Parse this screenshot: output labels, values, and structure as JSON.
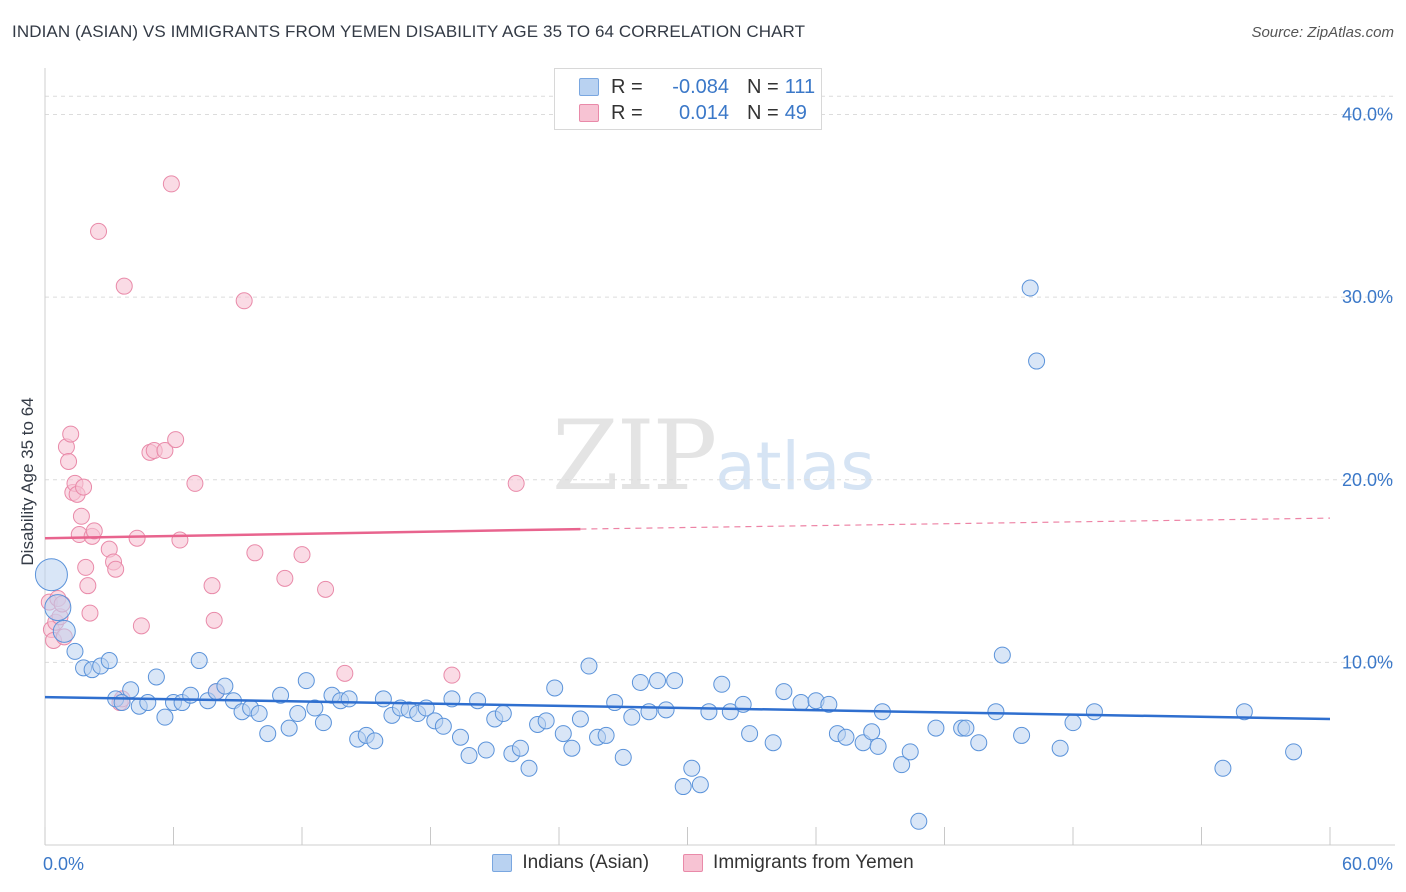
{
  "title": "INDIAN (ASIAN) VS IMMIGRANTS FROM YEMEN DISABILITY AGE 35 TO 64 CORRELATION CHART",
  "source": "Source: ZipAtlas.com",
  "watermark": {
    "zip": "ZIP",
    "atlas": "atlas"
  },
  "legend": {
    "rows": [
      {
        "r_label": "R =",
        "r_value": "-0.084",
        "n_label": "N =",
        "n_value": "111"
      },
      {
        "r_label": "R =",
        "r_value": "0.014",
        "n_label": "N =",
        "n_value": "49"
      }
    ]
  },
  "bottom_legend": {
    "series1": "Indians (Asian)",
    "series2": "Immigrants from Yemen"
  },
  "colors": {
    "blue": "#3b78c8",
    "blue_fill": "#b9d2f1",
    "blue_line": "#2f6fcf",
    "pink_fill": "#f7c3d3",
    "pink_line": "#e8648e"
  },
  "chart_data": {
    "type": "scatter",
    "title": "INDIAN (ASIAN) VS IMMIGRANTS FROM YEMEN DISABILITY AGE 35 TO 64 CORRELATION CHART",
    "xlabel": "",
    "ylabel": "Disability Age 35 to 64",
    "xlim": [
      0,
      60
    ],
    "ylim": [
      0,
      42
    ],
    "x_tick_labels": [
      "0.0%",
      "60.0%"
    ],
    "y_ticks": [
      10,
      20,
      30,
      40
    ],
    "y_tick_labels": [
      "10.0%",
      "20.0%",
      "30.0%",
      "40.0%"
    ],
    "grid": true,
    "series": [
      {
        "name": "Indians (Asian)",
        "trend": {
          "x": [
            0,
            60
          ],
          "y": [
            8.1,
            6.9
          ],
          "style": "solid"
        },
        "points": [
          [
            0.3,
            14.8
          ],
          [
            0.6,
            13.0
          ],
          [
            0.9,
            11.7
          ],
          [
            1.4,
            10.6
          ],
          [
            1.8,
            9.7
          ],
          [
            2.2,
            9.6
          ],
          [
            2.6,
            9.8
          ],
          [
            3.0,
            10.1
          ],
          [
            3.3,
            8.0
          ],
          [
            3.6,
            7.8
          ],
          [
            4.0,
            8.5
          ],
          [
            4.4,
            7.6
          ],
          [
            4.8,
            7.8
          ],
          [
            5.2,
            9.2
          ],
          [
            5.6,
            7.0
          ],
          [
            6.0,
            7.8
          ],
          [
            6.4,
            7.8
          ],
          [
            6.8,
            8.2
          ],
          [
            7.2,
            10.1
          ],
          [
            7.6,
            7.9
          ],
          [
            8.0,
            8.4
          ],
          [
            8.4,
            8.7
          ],
          [
            8.8,
            7.9
          ],
          [
            9.2,
            7.3
          ],
          [
            9.6,
            7.5
          ],
          [
            10.0,
            7.2
          ],
          [
            10.4,
            6.1
          ],
          [
            11.0,
            8.2
          ],
          [
            11.4,
            6.4
          ],
          [
            11.8,
            7.2
          ],
          [
            12.2,
            9.0
          ],
          [
            12.6,
            7.5
          ],
          [
            13.0,
            6.7
          ],
          [
            13.4,
            8.2
          ],
          [
            13.8,
            7.9
          ],
          [
            14.2,
            8.0
          ],
          [
            14.6,
            5.8
          ],
          [
            15.0,
            6.0
          ],
          [
            15.4,
            5.7
          ],
          [
            15.8,
            8.0
          ],
          [
            16.2,
            7.1
          ],
          [
            16.6,
            7.5
          ],
          [
            17.0,
            7.4
          ],
          [
            17.4,
            7.2
          ],
          [
            17.8,
            7.5
          ],
          [
            18.2,
            6.8
          ],
          [
            18.6,
            6.5
          ],
          [
            19.0,
            8.0
          ],
          [
            19.4,
            5.9
          ],
          [
            19.8,
            4.9
          ],
          [
            20.2,
            7.9
          ],
          [
            20.6,
            5.2
          ],
          [
            21.0,
            6.9
          ],
          [
            21.4,
            7.2
          ],
          [
            21.8,
            5.0
          ],
          [
            22.2,
            5.3
          ],
          [
            22.6,
            4.2
          ],
          [
            23.0,
            6.6
          ],
          [
            23.4,
            6.8
          ],
          [
            23.8,
            8.6
          ],
          [
            24.2,
            6.1
          ],
          [
            24.6,
            5.3
          ],
          [
            25.0,
            6.9
          ],
          [
            25.4,
            9.8
          ],
          [
            25.8,
            5.9
          ],
          [
            26.2,
            6.0
          ],
          [
            26.6,
            7.8
          ],
          [
            27.0,
            4.8
          ],
          [
            27.4,
            7.0
          ],
          [
            27.8,
            8.9
          ],
          [
            28.2,
            7.3
          ],
          [
            28.6,
            9.0
          ],
          [
            29.0,
            7.4
          ],
          [
            29.4,
            9.0
          ],
          [
            29.8,
            3.2
          ],
          [
            30.2,
            4.2
          ],
          [
            30.6,
            3.3
          ],
          [
            31.0,
            7.3
          ],
          [
            31.6,
            8.8
          ],
          [
            32.0,
            7.3
          ],
          [
            32.6,
            7.7
          ],
          [
            32.9,
            6.1
          ],
          [
            34.0,
            5.6
          ],
          [
            34.5,
            8.4
          ],
          [
            35.3,
            7.8
          ],
          [
            36.0,
            7.9
          ],
          [
            36.6,
            7.7
          ],
          [
            37.0,
            6.1
          ],
          [
            37.4,
            5.9
          ],
          [
            38.2,
            5.6
          ],
          [
            38.6,
            6.2
          ],
          [
            38.9,
            5.4
          ],
          [
            39.1,
            7.3
          ],
          [
            40.0,
            4.4
          ],
          [
            40.4,
            5.1
          ],
          [
            40.8,
            1.3
          ],
          [
            41.6,
            6.4
          ],
          [
            42.8,
            6.4
          ],
          [
            43.6,
            5.6
          ],
          [
            43.0,
            6.4
          ],
          [
            44.4,
            7.3
          ],
          [
            44.7,
            10.4
          ],
          [
            45.6,
            6.0
          ],
          [
            46.0,
            30.5
          ],
          [
            46.3,
            26.5
          ],
          [
            47.4,
            5.3
          ],
          [
            48.0,
            6.7
          ],
          [
            49.0,
            7.3
          ],
          [
            55.0,
            4.2
          ],
          [
            56.0,
            7.3
          ],
          [
            58.3,
            5.1
          ]
        ]
      },
      {
        "name": "Immigrants from Yemen",
        "trend": {
          "x": [
            0,
            25
          ],
          "y": [
            16.8,
            17.3
          ],
          "style": "solid",
          "extension": {
            "x": [
              25,
              60
            ],
            "y": [
              17.3,
              17.9
            ],
            "style": "dashed"
          }
        },
        "points": [
          [
            0.2,
            13.3
          ],
          [
            0.3,
            11.8
          ],
          [
            0.4,
            11.2
          ],
          [
            0.5,
            12.2
          ],
          [
            0.6,
            13.5
          ],
          [
            0.7,
            12.5
          ],
          [
            0.8,
            13.2
          ],
          [
            0.9,
            11.4
          ],
          [
            1.0,
            21.8
          ],
          [
            1.1,
            21.0
          ],
          [
            1.2,
            22.5
          ],
          [
            1.3,
            19.3
          ],
          [
            1.4,
            19.8
          ],
          [
            1.5,
            19.2
          ],
          [
            1.6,
            17.0
          ],
          [
            1.7,
            18.0
          ],
          [
            1.8,
            19.6
          ],
          [
            1.9,
            15.2
          ],
          [
            2.0,
            14.2
          ],
          [
            2.1,
            12.7
          ],
          [
            2.2,
            16.9
          ],
          [
            2.3,
            17.2
          ],
          [
            2.5,
            33.6
          ],
          [
            3.0,
            16.2
          ],
          [
            3.2,
            15.5
          ],
          [
            3.3,
            15.1
          ],
          [
            3.5,
            7.8
          ],
          [
            3.6,
            8.0
          ],
          [
            3.7,
            30.6
          ],
          [
            4.3,
            16.8
          ],
          [
            4.5,
            12.0
          ],
          [
            4.9,
            21.5
          ],
          [
            5.1,
            21.6
          ],
          [
            5.6,
            21.6
          ],
          [
            5.9,
            36.2
          ],
          [
            6.1,
            22.2
          ],
          [
            6.3,
            16.7
          ],
          [
            7.0,
            19.8
          ],
          [
            7.8,
            14.2
          ],
          [
            7.9,
            12.3
          ],
          [
            8.0,
            8.4
          ],
          [
            9.3,
            29.8
          ],
          [
            9.8,
            16.0
          ],
          [
            11.2,
            14.6
          ],
          [
            12.0,
            15.9
          ],
          [
            13.1,
            14.0
          ],
          [
            14.0,
            9.4
          ],
          [
            19.0,
            9.3
          ],
          [
            22.0,
            19.8
          ]
        ]
      }
    ]
  }
}
